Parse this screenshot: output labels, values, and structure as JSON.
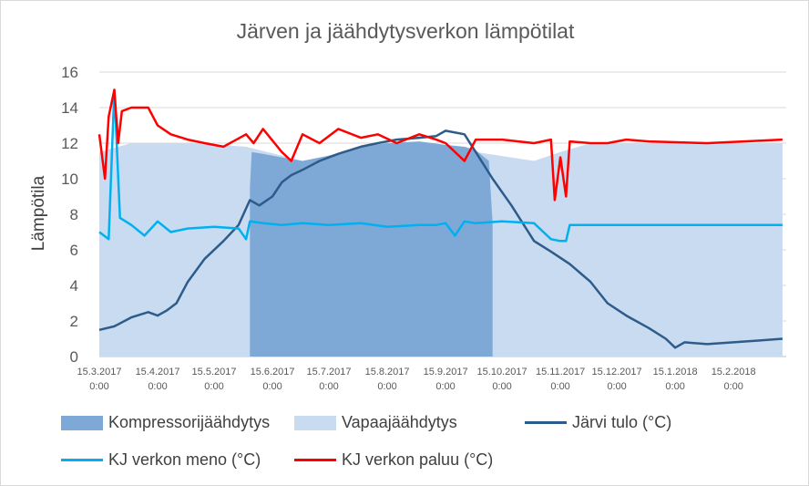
{
  "chart_data": {
    "type": "line",
    "title": "Järven ja jäähdytysverkon lämpötilat",
    "ylabel": "Lämpötila",
    "xlabel": "",
    "ylim": [
      0,
      16
    ],
    "yticks": [
      "0",
      "2",
      "4",
      "6",
      "8",
      "10",
      "12",
      "14",
      "16"
    ],
    "x_range": [
      "2017-03-15",
      "2018-03-15"
    ],
    "xticks": [
      {
        "date": "2017-03-15",
        "l1": "15.3.2017",
        "l2": "0:00"
      },
      {
        "date": "2017-04-15",
        "l1": "15.4.2017",
        "l2": "0:00"
      },
      {
        "date": "2017-05-15",
        "l1": "15.5.2017",
        "l2": "0:00"
      },
      {
        "date": "2017-06-15",
        "l1": "15.6.2017",
        "l2": "0:00"
      },
      {
        "date": "2017-07-15",
        "l1": "15.7.2017",
        "l2": "0:00"
      },
      {
        "date": "2017-08-15",
        "l1": "15.8.2017",
        "l2": "0:00"
      },
      {
        "date": "2017-09-15",
        "l1": "15.9.2017",
        "l2": "0:00"
      },
      {
        "date": "2017-10-15",
        "l1": "15.10.2017",
        "l2": "0:00"
      },
      {
        "date": "2017-11-15",
        "l1": "15.11.2017",
        "l2": "0:00"
      },
      {
        "date": "2017-12-15",
        "l1": "15.12.2017",
        "l2": "0:00"
      },
      {
        "date": "2018-01-15",
        "l1": "15.1.2018",
        "l2": "0:00"
      },
      {
        "date": "2018-02-15",
        "l1": "15.2.2018",
        "l2": "0:00"
      }
    ],
    "grid": true,
    "legend_position": "bottom",
    "series": [
      {
        "name": "Kompressorijäähdytys",
        "kind": "area",
        "color": "#7ea9d6",
        "x": [
          "2017-06-03",
          "2017-06-04",
          "2017-06-10",
          "2017-06-20",
          "2017-07-01",
          "2017-07-15",
          "2017-08-01",
          "2017-08-15",
          "2017-09-01",
          "2017-09-15",
          "2017-09-25",
          "2017-10-01",
          "2017-10-08",
          "2017-10-10"
        ],
        "values": [
          9.5,
          11.5,
          11.4,
          11.2,
          11.0,
          11.3,
          11.8,
          12.0,
          12.1,
          11.9,
          11.8,
          11.6,
          11.0,
          7.5
        ]
      },
      {
        "name": "Vapaajäähdytys",
        "kind": "area",
        "color": "#c8dbf0",
        "x": [
          "2017-03-15",
          "2017-04-01",
          "2017-05-01",
          "2017-06-01",
          "2017-07-01",
          "2017-08-01",
          "2017-09-01",
          "2017-10-01",
          "2017-11-01",
          "2017-11-15",
          "2017-12-01",
          "2018-01-01",
          "2018-02-01",
          "2018-03-13"
        ],
        "values": [
          11.5,
          12.0,
          12.0,
          11.8,
          11.0,
          11.5,
          12.0,
          11.5,
          11.0,
          11.5,
          12.0,
          12.0,
          12.0,
          12.0
        ]
      },
      {
        "name": "Järvi tulo (°C)",
        "kind": "line",
        "color": "#2e5c8a",
        "x": [
          "2017-03-15",
          "2017-03-23",
          "2017-04-01",
          "2017-04-10",
          "2017-04-15",
          "2017-04-20",
          "2017-04-25",
          "2017-05-01",
          "2017-05-10",
          "2017-05-20",
          "2017-05-28",
          "2017-06-03",
          "2017-06-08",
          "2017-06-15",
          "2017-06-20",
          "2017-06-25",
          "2017-07-01",
          "2017-07-10",
          "2017-07-20",
          "2017-08-01",
          "2017-08-10",
          "2017-08-20",
          "2017-09-01",
          "2017-09-10",
          "2017-09-15",
          "2017-09-25",
          "2017-10-01",
          "2017-10-10",
          "2017-10-20",
          "2017-11-01",
          "2017-11-10",
          "2017-11-20",
          "2017-12-01",
          "2017-12-10",
          "2017-12-20",
          "2018-01-01",
          "2018-01-10",
          "2018-01-15",
          "2018-01-20",
          "2018-02-01",
          "2018-02-15",
          "2018-03-01",
          "2018-03-13"
        ],
        "values": [
          1.5,
          1.7,
          2.2,
          2.5,
          2.3,
          2.6,
          3.0,
          4.2,
          5.5,
          6.5,
          7.4,
          8.8,
          8.5,
          9.0,
          9.8,
          10.2,
          10.5,
          11.0,
          11.4,
          11.8,
          12.0,
          12.2,
          12.3,
          12.4,
          12.7,
          12.5,
          11.5,
          10.0,
          8.5,
          6.5,
          5.9,
          5.2,
          4.2,
          3.0,
          2.3,
          1.6,
          1.0,
          0.5,
          0.8,
          0.7,
          0.8,
          0.9,
          1.0
        ]
      },
      {
        "name": "KJ verkon meno (°C)",
        "kind": "line",
        "color": "#00b0f0",
        "x": [
          "2017-03-15",
          "2017-03-20",
          "2017-03-23",
          "2017-03-26",
          "2017-04-01",
          "2017-04-08",
          "2017-04-15",
          "2017-04-22",
          "2017-05-01",
          "2017-05-15",
          "2017-05-28",
          "2017-06-01",
          "2017-06-03",
          "2017-06-10",
          "2017-06-20",
          "2017-07-01",
          "2017-07-15",
          "2017-08-01",
          "2017-08-15",
          "2017-09-01",
          "2017-09-10",
          "2017-09-15",
          "2017-09-20",
          "2017-09-25",
          "2017-10-01",
          "2017-10-15",
          "2017-11-01",
          "2017-11-10",
          "2017-11-15",
          "2017-11-18",
          "2017-11-20",
          "2018-01-01",
          "2018-02-01",
          "2018-03-13"
        ],
        "values": [
          7.0,
          6.6,
          15.0,
          7.8,
          7.4,
          6.8,
          7.6,
          7.0,
          7.2,
          7.3,
          7.2,
          6.6,
          7.6,
          7.5,
          7.4,
          7.5,
          7.4,
          7.5,
          7.3,
          7.4,
          7.4,
          7.5,
          6.8,
          7.6,
          7.5,
          7.6,
          7.5,
          6.6,
          6.5,
          6.5,
          7.4,
          7.4,
          7.4,
          7.4
        ]
      },
      {
        "name": "KJ verkon paluu (°C)",
        "kind": "line",
        "color": "#ff0000",
        "x": [
          "2017-03-15",
          "2017-03-18",
          "2017-03-20",
          "2017-03-23",
          "2017-03-25",
          "2017-03-27",
          "2017-04-01",
          "2017-04-10",
          "2017-04-15",
          "2017-04-22",
          "2017-05-01",
          "2017-05-10",
          "2017-05-20",
          "2017-06-01",
          "2017-06-05",
          "2017-06-10",
          "2017-06-20",
          "2017-06-25",
          "2017-07-01",
          "2017-07-10",
          "2017-07-20",
          "2017-08-01",
          "2017-08-10",
          "2017-08-20",
          "2017-09-01",
          "2017-09-10",
          "2017-09-15",
          "2017-09-25",
          "2017-10-01",
          "2017-10-15",
          "2017-11-01",
          "2017-11-10",
          "2017-11-12",
          "2017-11-15",
          "2017-11-18",
          "2017-11-20",
          "2017-12-01",
          "2017-12-10",
          "2017-12-20",
          "2018-01-01",
          "2018-02-01",
          "2018-03-13"
        ],
        "values": [
          12.5,
          10.0,
          13.5,
          15.0,
          12.0,
          13.8,
          14.0,
          14.0,
          13.0,
          12.5,
          12.2,
          12.0,
          11.8,
          12.5,
          12.0,
          12.8,
          11.5,
          11.0,
          12.5,
          12.0,
          12.8,
          12.3,
          12.5,
          12.0,
          12.5,
          12.2,
          12.0,
          11.0,
          12.2,
          12.2,
          12.0,
          12.2,
          8.8,
          11.2,
          9.0,
          12.1,
          12.0,
          12.0,
          12.2,
          12.1,
          12.0,
          12.2
        ]
      }
    ]
  }
}
